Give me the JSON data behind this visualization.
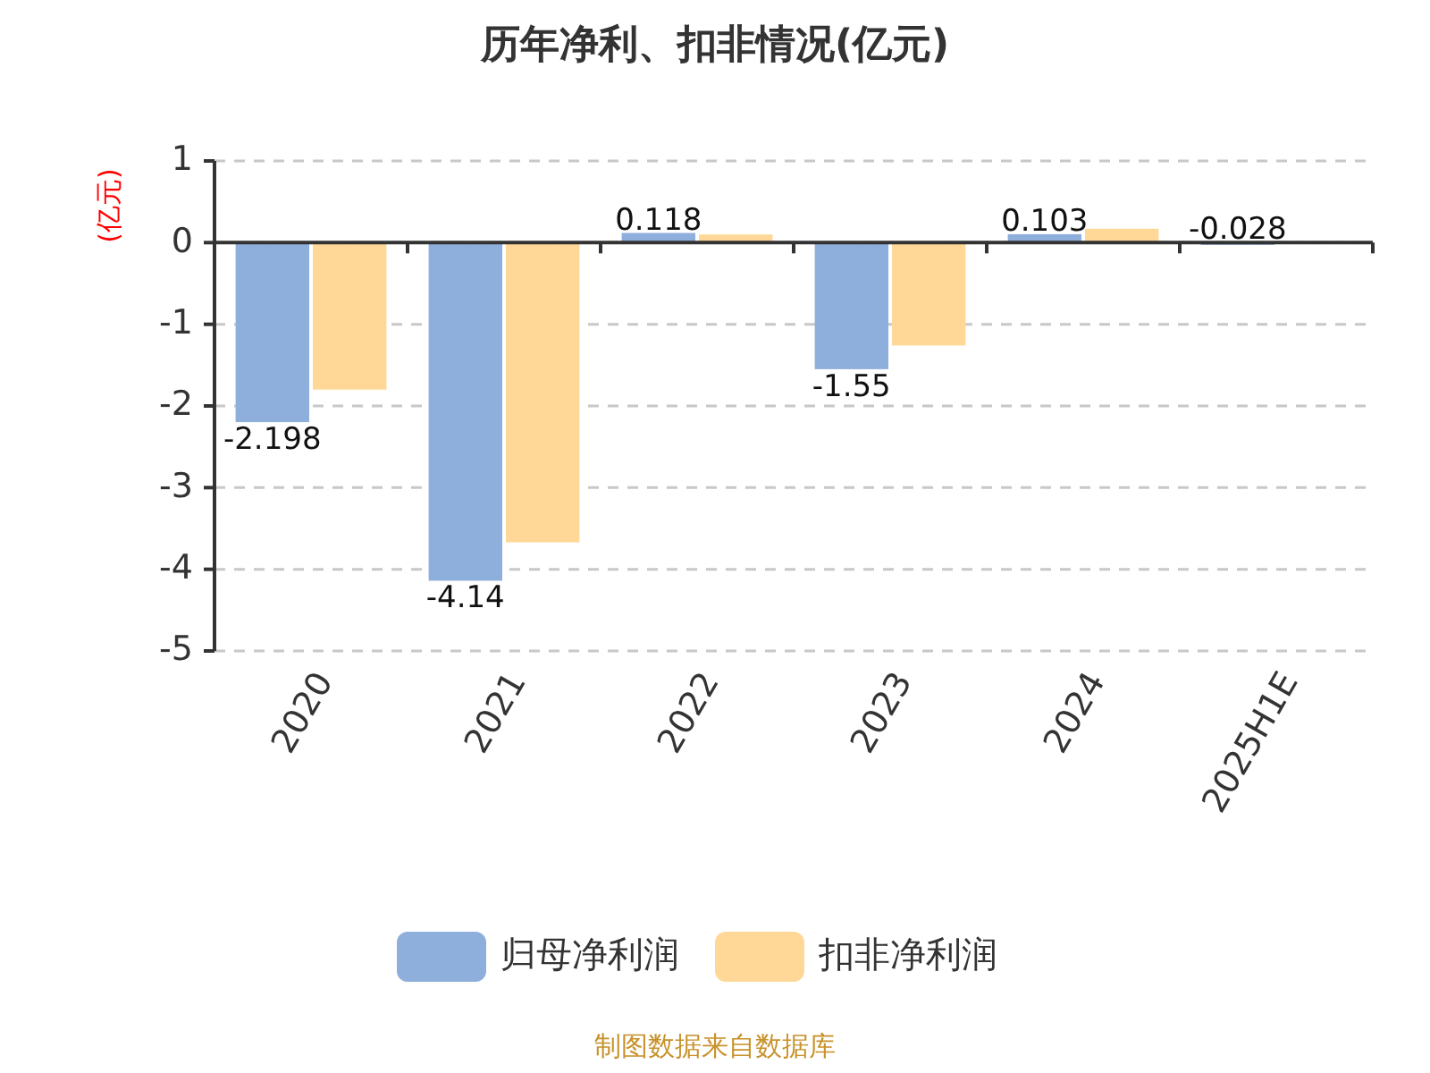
{
  "chart_data": {
    "type": "bar",
    "title": "历年净利、扣非情况(亿元)",
    "ylabel": "(亿元)",
    "categories": [
      "2020",
      "2021",
      "2022",
      "2023",
      "2024",
      "2025H1E"
    ],
    "series": [
      {
        "name": "归母净利润",
        "color": "#8eaedb",
        "values": [
          -2.198,
          -4.14,
          0.118,
          -1.55,
          0.103,
          -0.028
        ],
        "value_labels": [
          "-2.198",
          "-4.14",
          "0.118",
          "-1.55",
          "0.103",
          "-0.028"
        ]
      },
      {
        "name": "扣非净利润",
        "color": "#ffd898",
        "values": [
          -1.8,
          -3.67,
          0.1,
          -1.26,
          0.17,
          null
        ]
      }
    ],
    "ylim": [
      -5,
      1
    ],
    "yticks": [
      -5,
      -4,
      -3,
      -2,
      -1,
      0,
      1
    ],
    "grid": "y",
    "legend": "bottom",
    "annotations": [
      "制图数据来自数据库"
    ]
  }
}
